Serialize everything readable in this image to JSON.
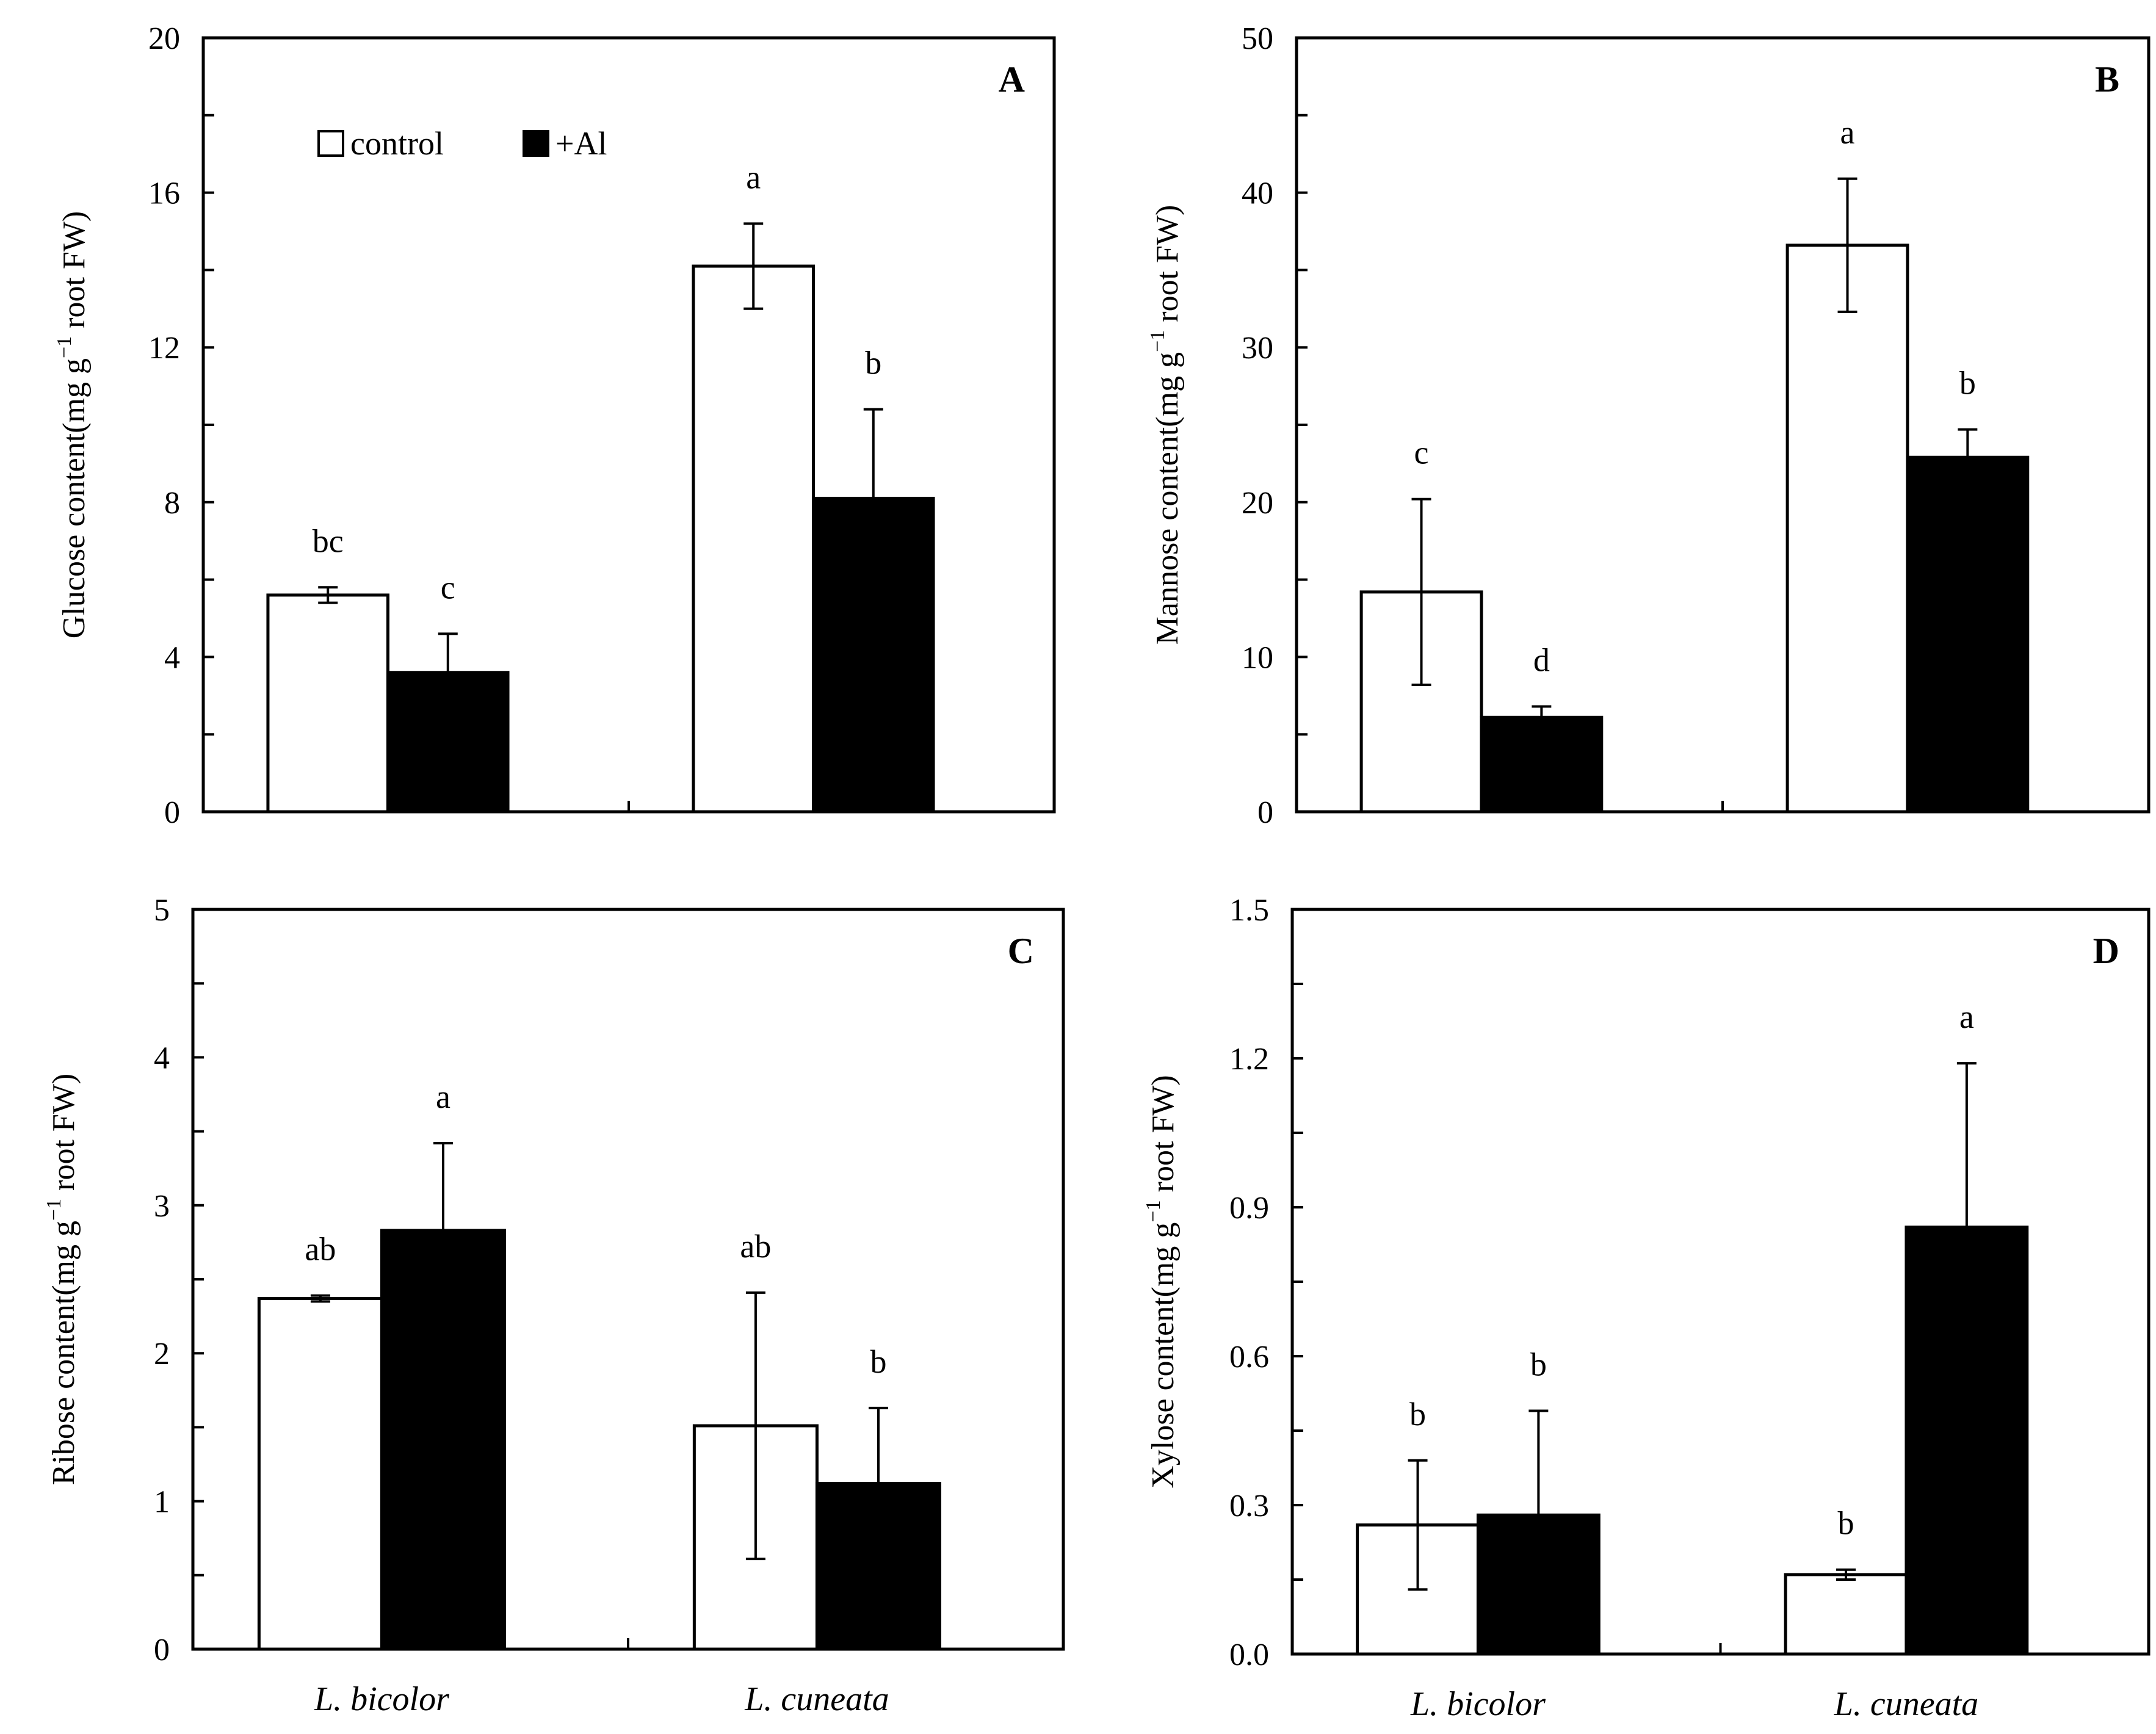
{
  "chart_data": [
    {
      "type": "bar",
      "panel": "A",
      "ylabel_prefix": "Glucose content(mg g",
      "ylabel_sup": "−1",
      "ylabel_suffix": " root FW)",
      "ylim": [
        0,
        20
      ],
      "yticks": [
        "0",
        "4",
        "8",
        "12",
        "16",
        "20"
      ],
      "ytick_values": [
        0,
        4,
        8,
        12,
        16,
        20
      ],
      "categories": [
        "L. bicolor",
        "L. cuneata"
      ],
      "show_xlabels": false,
      "legend": {
        "show": true,
        "items": [
          "control",
          "+Al"
        ]
      },
      "series": [
        {
          "name": "control",
          "color": "#ffffff",
          "values": [
            5.6,
            14.1
          ],
          "errors": [
            0.2,
            1.1
          ],
          "letters": [
            "bc",
            "a"
          ]
        },
        {
          "name": "+Al",
          "color": "#000000",
          "values": [
            3.6,
            8.1
          ],
          "errors": [
            1.0,
            2.3
          ],
          "letters": [
            "c",
            "b"
          ]
        }
      ]
    },
    {
      "type": "bar",
      "panel": "B",
      "ylabel_prefix": "Mannose content(mg g",
      "ylabel_sup": "−1",
      "ylabel_suffix": " root FW)",
      "ylim": [
        0,
        50
      ],
      "yticks": [
        "0",
        "10",
        "20",
        "30",
        "40",
        "50"
      ],
      "ytick_values": [
        0,
        10,
        20,
        30,
        40,
        50
      ],
      "categories": [
        "L. bicolor",
        "L. cuneata"
      ],
      "show_xlabels": false,
      "legend": {
        "show": false,
        "items": []
      },
      "series": [
        {
          "name": "control",
          "color": "#ffffff",
          "values": [
            14.2,
            36.6
          ],
          "errors": [
            6.0,
            4.3
          ],
          "letters": [
            "c",
            "a"
          ]
        },
        {
          "name": "+Al",
          "color": "#000000",
          "values": [
            6.1,
            22.9
          ],
          "errors": [
            0.7,
            1.8
          ],
          "letters": [
            "d",
            "b"
          ]
        }
      ]
    },
    {
      "type": "bar",
      "panel": "C",
      "ylabel_prefix": "Ribose content(mg g",
      "ylabel_sup": "−1",
      "ylabel_suffix": " root FW)",
      "ylim": [
        0,
        5
      ],
      "yticks": [
        "0",
        "1",
        "2",
        "3",
        "4",
        "5"
      ],
      "ytick_values": [
        0,
        1,
        2,
        3,
        4,
        5
      ],
      "categories": [
        "L. bicolor",
        "L. cuneata"
      ],
      "show_xlabels": true,
      "legend": {
        "show": false,
        "items": []
      },
      "series": [
        {
          "name": "control",
          "color": "#ffffff",
          "values": [
            2.37,
            1.51
          ],
          "errors": [
            0.02,
            0.9
          ],
          "letters": [
            "ab",
            "ab"
          ]
        },
        {
          "name": "+Al",
          "color": "#000000",
          "values": [
            2.83,
            1.12
          ],
          "errors": [
            0.59,
            0.51
          ],
          "letters": [
            "a",
            "b"
          ]
        }
      ]
    },
    {
      "type": "bar",
      "panel": "D",
      "ylabel_prefix": "Xylose content(mg g",
      "ylabel_sup": "−1",
      "ylabel_suffix": " root FW)",
      "ylim": [
        0,
        1.5
      ],
      "yticks": [
        "0.0",
        "0.3",
        "0.6",
        "0.9",
        "1.2",
        "1.5"
      ],
      "ytick_values": [
        0,
        0.3,
        0.6,
        0.9,
        1.2,
        1.5
      ],
      "categories": [
        "L. bicolor",
        "L. cuneata"
      ],
      "show_xlabels": true,
      "legend": {
        "show": false,
        "items": []
      },
      "series": [
        {
          "name": "control",
          "color": "#ffffff",
          "values": [
            0.26,
            0.16
          ],
          "errors": [
            0.13,
            0.01
          ],
          "letters": [
            "b",
            "b"
          ]
        },
        {
          "name": "+Al",
          "color": "#000000",
          "values": [
            0.28,
            0.86
          ],
          "errors": [
            0.21,
            0.33
          ],
          "letters": [
            "b",
            "a"
          ]
        }
      ]
    }
  ]
}
